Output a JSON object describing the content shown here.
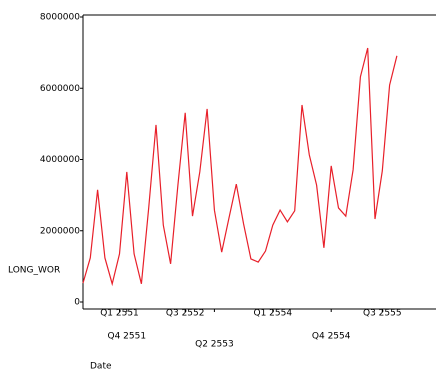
{
  "chart_data": {
    "type": "line",
    "x_label": "Date",
    "y_label": "LONG_WOR",
    "categories": [
      null,
      null,
      null,
      null,
      null,
      "Q1 2551",
      "Q4 2551",
      null,
      null,
      null,
      null,
      null,
      null,
      null,
      "Q3 2552",
      null,
      null,
      null,
      "Q2 2553",
      null,
      null,
      null,
      null,
      null,
      null,
      null,
      "Q1 2554",
      null,
      null,
      null,
      null,
      null,
      null,
      null,
      "Q4 2554",
      null,
      null,
      null,
      null,
      null,
      null,
      "Q3 2555",
      null,
      null
    ],
    "series": [
      {
        "color": "#e8202a",
        "values": [
          530000,
          1240000,
          3150000,
          1240000,
          510000,
          1350000,
          3650000,
          1350000,
          510000,
          2640000,
          4970000,
          2160000,
          1070000,
          3280000,
          5310000,
          2410000,
          3650000,
          5420000,
          2580000,
          1400000,
          2360000,
          3310000,
          2190000,
          1210000,
          1120000,
          1430000,
          2160000,
          2580000,
          2250000,
          2560000,
          5530000,
          4130000,
          3280000,
          1520000,
          3820000,
          2640000,
          2410000,
          3710000,
          6320000,
          7130000,
          2330000,
          3680000,
          6090000,
          6910000
        ]
      }
    ],
    "ylim": [
      0,
      8000000
    ],
    "yticks": [
      0,
      2000000,
      4000000,
      6000000,
      8000000
    ]
  }
}
